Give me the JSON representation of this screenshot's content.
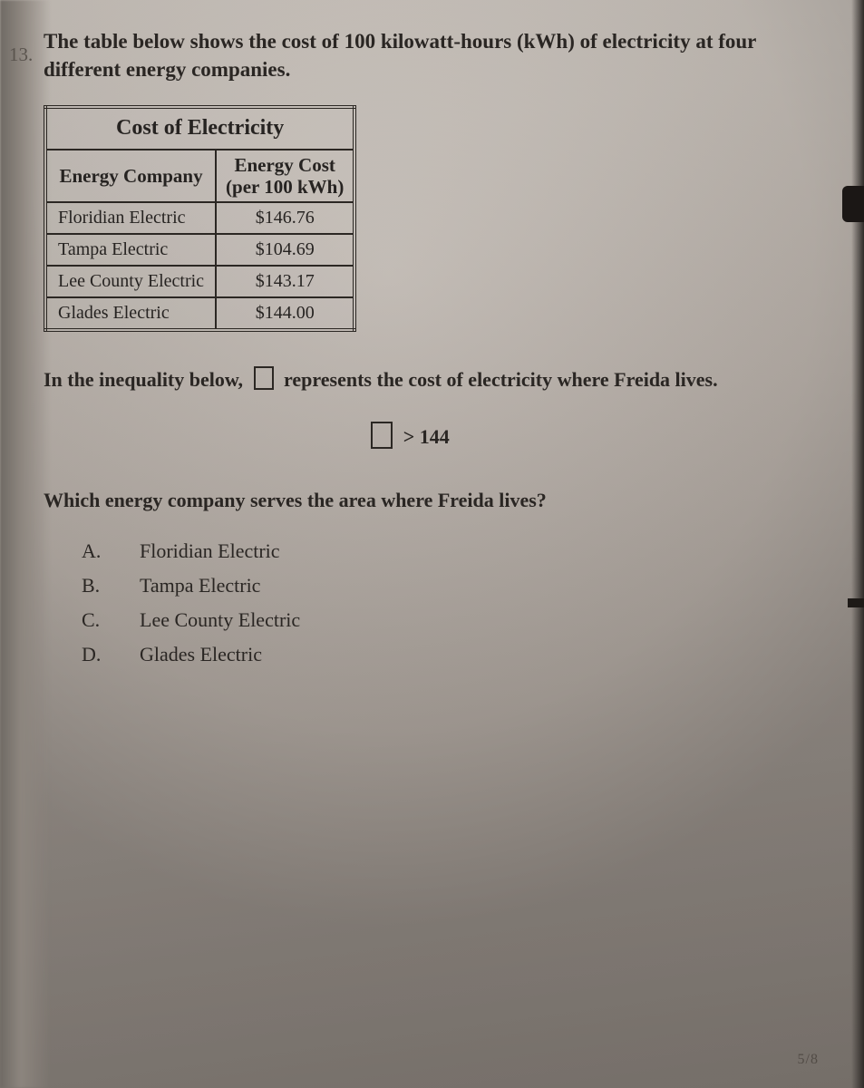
{
  "question_number": "13.",
  "lead_text": "The table below shows the cost of 100 kilowatt-hours (kWh) of electricity at four different energy companies.",
  "table": {
    "title": "Cost of Electricity",
    "columns": [
      "Energy Company",
      "Energy Cost\n(per 100 kWh)"
    ],
    "rows": [
      [
        "Floridian Electric",
        "$146.76"
      ],
      [
        "Tampa Electric",
        "$104.69"
      ],
      [
        "Lee County Electric",
        "$143.17"
      ],
      [
        "Glades Electric",
        "$144.00"
      ]
    ],
    "border_color": "#2b2723",
    "title_fontsize": 24,
    "header_fontsize": 21,
    "cell_fontsize": 20
  },
  "inequality_intro_before": "In the inequality below,",
  "inequality_intro_after": "represents the cost of electricity where Freida lives.",
  "inequality_expr": "> 144",
  "question_text": "Which energy company serves the area where Freida lives?",
  "options": [
    {
      "letter": "A.",
      "text": "Floridian Electric"
    },
    {
      "letter": "B.",
      "text": "Tampa Electric"
    },
    {
      "letter": "C.",
      "text": "Lee County Electric"
    },
    {
      "letter": "D.",
      "text": "Glades Electric"
    }
  ],
  "page_footer": "5/8",
  "colors": {
    "text": "#2a2623",
    "paper_top": "#c8c1ba",
    "paper_bottom": "#8e867f"
  }
}
